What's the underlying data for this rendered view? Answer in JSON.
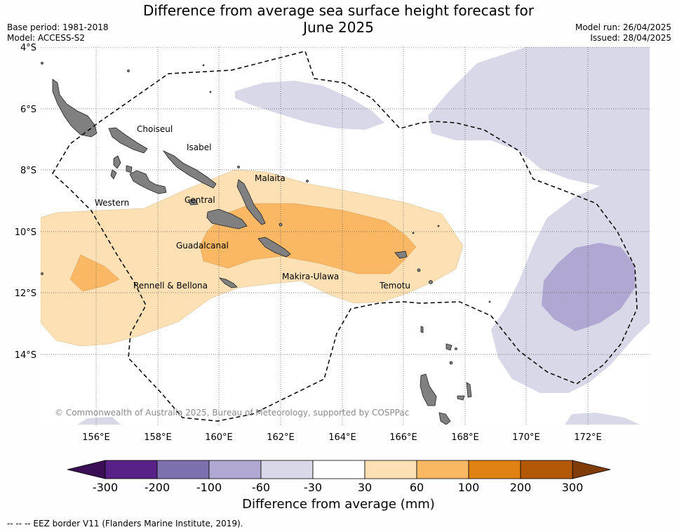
{
  "header": {
    "title_line1": "Difference from average sea surface height forecast for",
    "title_line2": "June 2025",
    "base_period": "Base period: 1981-2018",
    "model": "Model: ACCESS-S2",
    "model_run": "Model run: 26/04/2025",
    "issued": "Issued: 28/04/2025"
  },
  "map": {
    "lat_labels": [
      "4°S",
      "6°S",
      "8°S",
      "10°S",
      "12°S",
      "14°S"
    ],
    "lon_labels": [
      "156°E",
      "158°E",
      "160°E",
      "162°E",
      "164°E",
      "166°E",
      "168°E",
      "170°E",
      "172°E"
    ],
    "provinces": [
      "Choiseul",
      "Isabel",
      "Malaita",
      "Western",
      "Central",
      "Guadalcanal",
      "Rennell & Bellona",
      "Makira-Ulawa",
      "Temotu"
    ],
    "copyright": "© Commonwealth of Australia 2025, Bureau of Meteorology, supported by COSPPac",
    "colors": {
      "ocean": "#ffffff",
      "land": "#808080",
      "neg_60_30": "#d8d8e8",
      "neg_100_60": "#b0a8d2",
      "pos_30_60": "#fde0b4",
      "pos_60_100": "#fab864",
      "eez_border": "#000000"
    }
  },
  "colorbar": {
    "ticks": [
      "-300",
      "-200",
      "-100",
      "-60",
      "-30",
      "30",
      "60",
      "100",
      "200",
      "300"
    ],
    "colors": [
      "#3b0f56",
      "#582187",
      "#7e70ae",
      "#b0a8d2",
      "#d8d8e8",
      "#ffffff",
      "#fde0b4",
      "#fab864",
      "#e08212",
      "#b35806",
      "#7f3b08"
    ],
    "label": "Difference from average (mm)"
  },
  "legend_note": "-- -- -- EEZ border V11 (Flanders Marine Institute, 2019)."
}
